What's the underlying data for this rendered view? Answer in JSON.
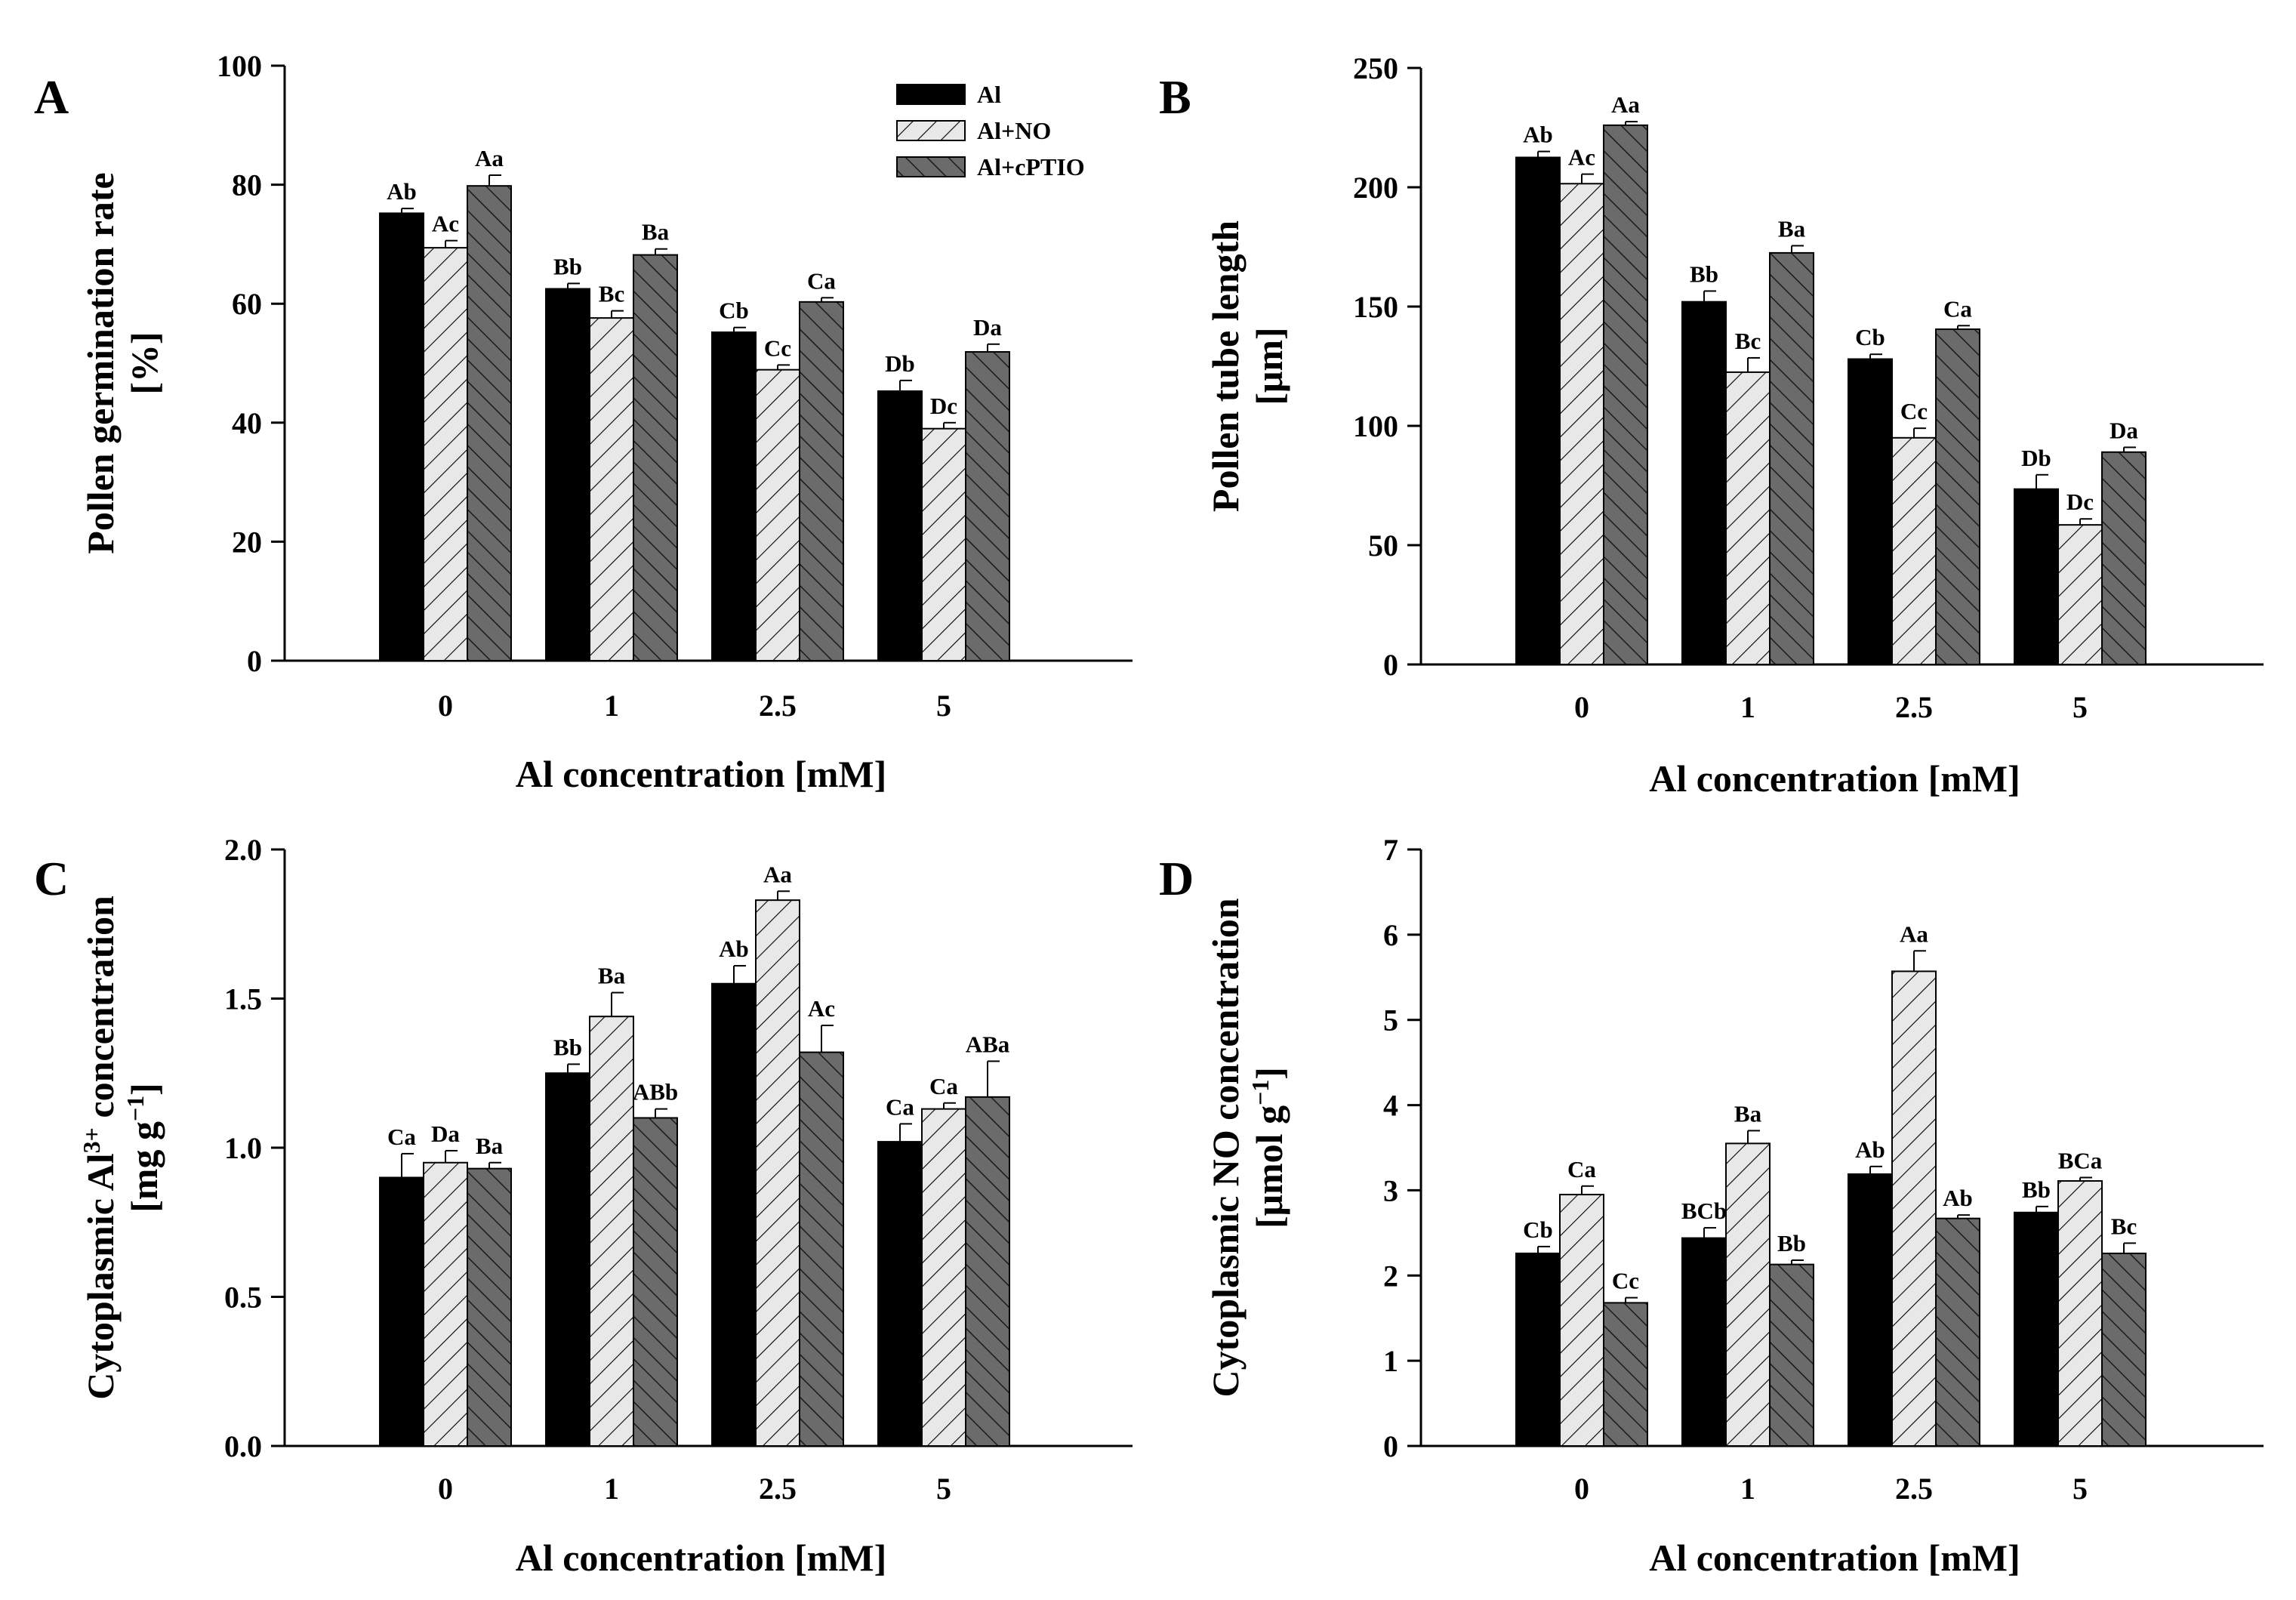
{
  "figure": {
    "legend": [
      {
        "name": "Al",
        "pattern": "solid-black"
      },
      {
        "name": "Al+NO",
        "pattern": "light-diagonal"
      },
      {
        "name": "Al+cPTIO",
        "pattern": "dark-diagonal"
      }
    ],
    "colors": {
      "series1": "#000000",
      "series2": "#e8e8e8",
      "series3": "#6b6b6b",
      "axis": "#000000"
    }
  },
  "chart_data": [
    {
      "panel": "A",
      "type": "bar",
      "ylabel": "Pollen germination rate",
      "ylabel_unit": "[%]",
      "xlabel": "Al concentration [mM]",
      "categories": [
        "0",
        "1",
        "2.5",
        "5"
      ],
      "ylim": [
        0,
        100
      ],
      "yticks": [
        "0",
        "20",
        "40",
        "60",
        "80",
        "100"
      ],
      "ytick_values": [
        0,
        20,
        40,
        60,
        80,
        100
      ],
      "series": [
        {
          "name": "Al",
          "values": [
            75.2,
            62.5,
            55.2,
            45.3
          ],
          "errors": [
            0.8,
            0.9,
            0.8,
            1.8
          ],
          "labels": [
            "Ab",
            "Bb",
            "Cb",
            "Db"
          ]
        },
        {
          "name": "Al+NO",
          "values": [
            69.4,
            57.6,
            48.9,
            39.0
          ],
          "errors": [
            1.2,
            1.2,
            0.8,
            1.0
          ],
          "labels": [
            "Ac",
            "Bc",
            "Cc",
            "Dc"
          ]
        },
        {
          "name": "Al+cPTIO",
          "values": [
            79.8,
            68.2,
            60.3,
            51.9
          ],
          "errors": [
            1.8,
            1.0,
            0.7,
            1.3
          ],
          "labels": [
            "Aa",
            "Ba",
            "Ca",
            "Da"
          ]
        }
      ],
      "legend": "top-right"
    },
    {
      "panel": "B",
      "type": "bar",
      "ylabel": "Pollen tube length",
      "ylabel_unit": "[μm]",
      "xlabel": "Al concentration [mM]",
      "categories": [
        "0",
        "1",
        "2.5",
        "5"
      ],
      "ylim": [
        0,
        250
      ],
      "yticks": [
        "0",
        "50",
        "100",
        "150",
        "200",
        "250"
      ],
      "ytick_values": [
        0,
        50,
        100,
        150,
        200,
        250
      ],
      "series": [
        {
          "name": "Al",
          "values": [
            212.5,
            152.0,
            128.0,
            73.5
          ],
          "errors": [
            2.5,
            4.5,
            2.0,
            6.0
          ],
          "labels": [
            "Ab",
            "Bb",
            "Cb",
            "Db"
          ]
        },
        {
          "name": "Al+NO",
          "values": [
            201.5,
            122.5,
            95.0,
            58.5
          ],
          "errors": [
            4.0,
            6.0,
            4.0,
            2.5
          ],
          "labels": [
            "Ac",
            "Bc",
            "Cc",
            "Dc"
          ]
        },
        {
          "name": "Al+cPTIO",
          "values": [
            226.0,
            172.5,
            140.5,
            89.0
          ],
          "errors": [
            1.5,
            3.0,
            1.5,
            2.0
          ],
          "labels": [
            "Aa",
            "Ba",
            "Ca",
            "Da"
          ]
        }
      ]
    },
    {
      "panel": "C",
      "type": "bar",
      "ylabel": "Cytoplasmic Al",
      "ylabel_sup": "3+",
      "ylabel_suffix": " concentration",
      "ylabel_unit": "[mg g",
      "ylabel_unit_sup": "−1",
      "ylabel_unit_close": "]",
      "xlabel": "Al concentration [mM]",
      "categories": [
        "0",
        "1",
        "2.5",
        "5"
      ],
      "ylim": [
        0,
        2.0
      ],
      "yticks": [
        "0.0",
        "0.5",
        "1.0",
        "1.5",
        "2.0"
      ],
      "ytick_values": [
        0,
        0.5,
        1.0,
        1.5,
        2.0
      ],
      "series": [
        {
          "name": "Al",
          "values": [
            0.9,
            1.25,
            1.55,
            1.02
          ],
          "errors": [
            0.08,
            0.03,
            0.06,
            0.06
          ],
          "labels": [
            "Ca",
            "Bb",
            "Ab",
            "Ca"
          ]
        },
        {
          "name": "Al+NO",
          "values": [
            0.95,
            1.44,
            1.83,
            1.13
          ],
          "errors": [
            0.04,
            0.08,
            0.03,
            0.02
          ],
          "labels": [
            "Da",
            "Ba",
            "Aa",
            "Ca"
          ]
        },
        {
          "name": "Al+cPTIO",
          "values": [
            0.93,
            1.1,
            1.32,
            1.17
          ],
          "errors": [
            0.02,
            0.03,
            0.09,
            0.12
          ],
          "labels": [
            "Ba",
            "ABb",
            "Ac",
            "ABa"
          ]
        }
      ]
    },
    {
      "panel": "D",
      "type": "bar",
      "ylabel": "Cytoplasmic NO concentration",
      "ylabel_unit": "[μmol g",
      "ylabel_unit_sup": "−1",
      "ylabel_unit_close": "]",
      "xlabel": "Al concentration [mM]",
      "categories": [
        "0",
        "1",
        "2.5",
        "5"
      ],
      "ylim": [
        0,
        7
      ],
      "yticks": [
        "0",
        "1",
        "2",
        "3",
        "4",
        "5",
        "6",
        "7"
      ],
      "ytick_values": [
        0,
        1,
        2,
        3,
        4,
        5,
        6,
        7
      ],
      "series": [
        {
          "name": "Al",
          "values": [
            2.26,
            2.44,
            3.19,
            2.74
          ],
          "errors": [
            0.08,
            0.12,
            0.09,
            0.07
          ],
          "labels": [
            "Cb",
            "BCb",
            "Ab",
            "Bb"
          ]
        },
        {
          "name": "Al+NO",
          "values": [
            2.95,
            3.55,
            5.57,
            3.11
          ],
          "errors": [
            0.1,
            0.15,
            0.24,
            0.04
          ],
          "labels": [
            "Ca",
            "Ba",
            "Aa",
            "BCa"
          ]
        },
        {
          "name": "Al+cPTIO",
          "values": [
            1.68,
            2.13,
            2.67,
            2.26
          ],
          "errors": [
            0.06,
            0.05,
            0.04,
            0.12
          ],
          "labels": [
            "Cc",
            "Bb",
            "Ab",
            "Bc"
          ]
        }
      ]
    }
  ]
}
